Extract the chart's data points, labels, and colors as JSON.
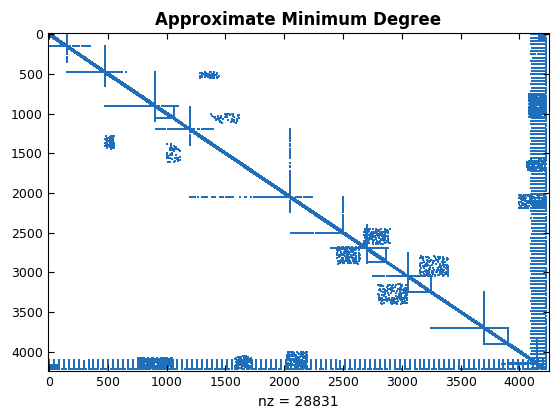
{
  "title": "Approximate Minimum Degree",
  "xlabel_bottom": "nz = 28831",
  "n": 4224,
  "nz": 28831,
  "xlim": [
    -10,
    4250
  ],
  "ylim": [
    4250,
    -10
  ],
  "xticks": [
    0,
    500,
    1000,
    1500,
    2000,
    2500,
    3000,
    3500,
    4000
  ],
  "yticks": [
    0,
    500,
    1000,
    1500,
    2000,
    2500,
    3000,
    3500,
    4000
  ],
  "dot_color": "#1f6fbd",
  "dot_size": 1.5,
  "background_color": "#ffffff",
  "title_fontsize": 12,
  "tick_fontsize": 9,
  "xlabel_fontsize": 10,
  "seed": 7
}
